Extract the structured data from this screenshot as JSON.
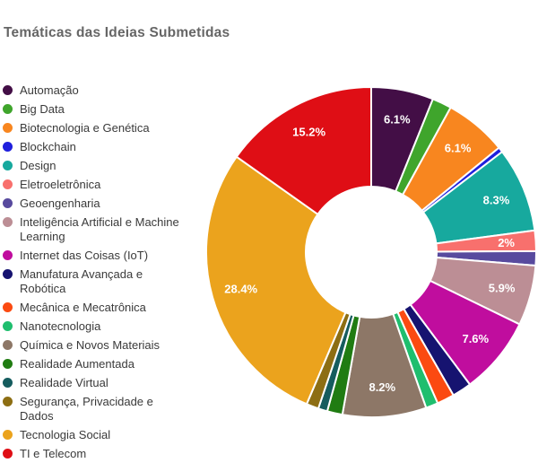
{
  "chart_data": {
    "type": "pie",
    "subtype": "donut",
    "title": "Temáticas das Ideias Submetidas",
    "title_color": "#666666",
    "legend_position": "left",
    "start_angle": "top",
    "direction": "clockwise",
    "unit": "%",
    "slices": [
      {
        "label": "Automação",
        "value": 6.1,
        "display_label": "6.1%",
        "color": "#430e46"
      },
      {
        "label": "Big Data",
        "value": 1.9,
        "display_label": "",
        "color": "#3fa52c"
      },
      {
        "label": "Biotecnologia e Genética",
        "value": 6.1,
        "display_label": "6.1%",
        "color": "#f8861f"
      },
      {
        "label": "Blockchain",
        "value": 0.5,
        "display_label": "",
        "color": "#1f1fdd"
      },
      {
        "label": "Design",
        "value": 8.3,
        "display_label": "8.3%",
        "color": "#17a99e"
      },
      {
        "label": "Eletroeletrônica",
        "value": 2.0,
        "display_label": "2%",
        "color": "#f8706d"
      },
      {
        "label": "Geoengenharia",
        "value": 1.4,
        "display_label": "",
        "color": "#584a9e"
      },
      {
        "label": "Inteligência Artificial e Machine\nLearning",
        "value": 5.9,
        "display_label": "5.9%",
        "color": "#bc8e95"
      },
      {
        "label": "Internet das Coisas (IoT)",
        "value": 7.6,
        "display_label": "7.6%",
        "color": "#c00d9e"
      },
      {
        "label": "Manufatura Avançada e\nRobótica",
        "value": 1.9,
        "display_label": "",
        "color": "#161370"
      },
      {
        "label": "Mecânica e Mecatrônica",
        "value": 1.7,
        "display_label": "",
        "color": "#fb4a11"
      },
      {
        "label": "Nanotecnologia",
        "value": 1.2,
        "display_label": "",
        "color": "#1fbe6e"
      },
      {
        "label": "Química e Novos Materiais",
        "value": 8.2,
        "display_label": "8.2%",
        "color": "#8d7767"
      },
      {
        "label": "Realidade Aumentada",
        "value": 1.5,
        "display_label": "",
        "color": "#207c12"
      },
      {
        "label": "Realidade Virtual",
        "value": 0.9,
        "display_label": "",
        "color": "#155c5e"
      },
      {
        "label": "Segurança, Privacidade e Dados",
        "value": 1.2,
        "display_label": "",
        "color": "#8d6e13"
      },
      {
        "label": "Tecnologia Social",
        "value": 28.4,
        "display_label": "28.4%",
        "color": "#eba31d"
      },
      {
        "label": "TI e Telecom",
        "value": 15.2,
        "display_label": "15.2%",
        "color": "#df0e15"
      }
    ]
  }
}
